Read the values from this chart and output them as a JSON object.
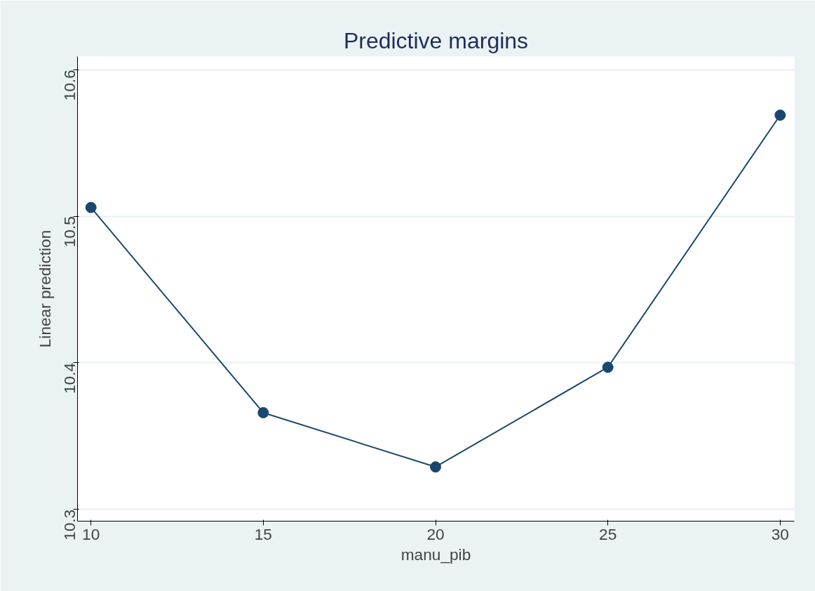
{
  "chart_data": {
    "type": "line",
    "title": "Predictive margins",
    "xlabel": "manu_pib",
    "ylabel": "Linear prediction",
    "x": [
      10,
      15,
      20,
      25,
      30
    ],
    "series": [
      {
        "color": "#1a476f",
        "values": [
          10.506,
          10.366,
          10.329,
          10.397,
          10.569
        ]
      }
    ],
    "xlim": [
      9.61,
      30.41
    ],
    "ylim": [
      10.292,
      10.609
    ],
    "xticks": [
      10,
      15,
      20,
      25,
      30
    ],
    "yticks": [
      10.3,
      10.4,
      10.5,
      10.6
    ],
    "grid": "y",
    "marker": "circle",
    "line_style": "solid"
  }
}
